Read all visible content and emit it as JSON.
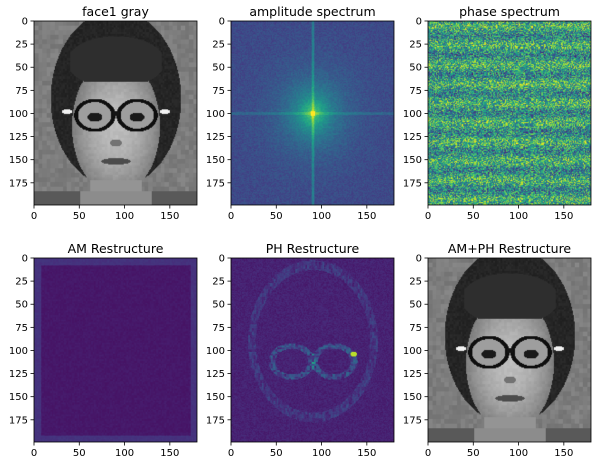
{
  "figure": {
    "background": "#ffffff"
  },
  "chart_data": [
    {
      "type": "heatmap",
      "title": "face1 gray",
      "content": "grayscale-face",
      "colormap": "gray",
      "xlim": [
        0,
        180
      ],
      "ylim": [
        0,
        199
      ],
      "xticks": [
        "0",
        "50",
        "100",
        "150"
      ],
      "yticks": [
        "0",
        "25",
        "50",
        "75",
        "100",
        "125",
        "150",
        "175"
      ]
    },
    {
      "type": "heatmap",
      "title": "amplitude spectrum",
      "content": "log-amplitude-spectrum",
      "colormap": "viridis",
      "center": [
        90,
        100
      ],
      "xlim": [
        0,
        180
      ],
      "ylim": [
        0,
        199
      ],
      "xticks": [
        "0",
        "50",
        "100",
        "150"
      ],
      "yticks": [
        "0",
        "25",
        "50",
        "75",
        "100",
        "125",
        "150",
        "175"
      ]
    },
    {
      "type": "heatmap",
      "title": "phase spectrum",
      "content": "phase-noise",
      "colormap": "viridis",
      "xlim": [
        0,
        180
      ],
      "ylim": [
        0,
        199
      ],
      "xticks": [
        "0",
        "50",
        "100",
        "150"
      ],
      "yticks": [
        "0",
        "25",
        "50",
        "75",
        "100",
        "125",
        "150",
        "175"
      ]
    },
    {
      "type": "heatmap",
      "title": "AM Restructure",
      "content": "amplitude-only-reconstruction",
      "colormap": "viridis",
      "xlim": [
        0,
        180
      ],
      "ylim": [
        0,
        199
      ],
      "xticks": [
        "0",
        "50",
        "100",
        "150"
      ],
      "yticks": [
        "0",
        "25",
        "50",
        "75",
        "100",
        "125",
        "150",
        "175"
      ]
    },
    {
      "type": "heatmap",
      "title": "PH Restructure",
      "content": "phase-only-reconstruction",
      "colormap": "viridis",
      "xlim": [
        0,
        180
      ],
      "ylim": [
        0,
        199
      ],
      "xticks": [
        "0",
        "50",
        "100",
        "150"
      ],
      "yticks": [
        "0",
        "25",
        "50",
        "75",
        "100",
        "125",
        "150",
        "175"
      ]
    },
    {
      "type": "heatmap",
      "title": "AM+PH Restructure",
      "content": "grayscale-face",
      "colormap": "gray",
      "xlim": [
        0,
        180
      ],
      "ylim": [
        0,
        199
      ],
      "xticks": [
        "0",
        "50",
        "100",
        "150"
      ],
      "yticks": [
        "0",
        "25",
        "50",
        "75",
        "100",
        "125",
        "150",
        "175"
      ]
    }
  ]
}
